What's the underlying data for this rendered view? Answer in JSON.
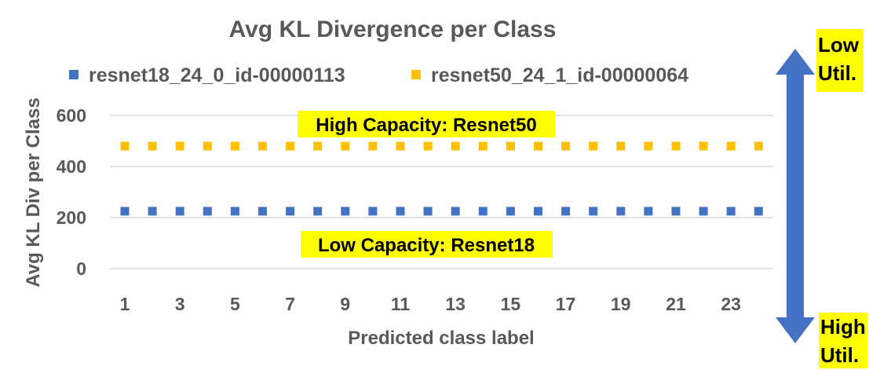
{
  "chart_data": {
    "type": "scatter",
    "title": "Avg KL Divergence per Class",
    "xlabel": "Predicted class label",
    "ylabel": "Avg KL Div per Class",
    "x": [
      1,
      2,
      3,
      4,
      5,
      6,
      7,
      8,
      9,
      10,
      11,
      12,
      13,
      14,
      15,
      16,
      17,
      18,
      19,
      20,
      21,
      22,
      23,
      24
    ],
    "x_tick_labels": [
      "1",
      "3",
      "5",
      "7",
      "9",
      "11",
      "13",
      "15",
      "17",
      "19",
      "21",
      "23"
    ],
    "y_tick_labels": [
      "0",
      "200",
      "400",
      "600"
    ],
    "ylim": [
      0,
      600
    ],
    "grid": true,
    "legend_position": "top",
    "series": [
      {
        "name": "resnet18_24_0_id-00000113",
        "color": "#4472C4",
        "values": [
          225,
          225,
          225,
          225,
          225,
          225,
          225,
          225,
          225,
          225,
          225,
          225,
          225,
          225,
          225,
          225,
          225,
          225,
          225,
          225,
          225,
          225,
          225,
          225
        ]
      },
      {
        "name": "resnet50_24_1_id-00000064",
        "color": "#FFC000",
        "values": [
          480,
          480,
          480,
          480,
          480,
          480,
          480,
          480,
          480,
          480,
          480,
          480,
          480,
          480,
          480,
          480,
          480,
          480,
          480,
          480,
          480,
          480,
          480,
          480
        ]
      }
    ],
    "annotations": {
      "high_capacity": "High Capacity: Resnet50",
      "low_capacity": "Low Capacity: Resnet18",
      "top_arrow_label": [
        "Low",
        "Util."
      ],
      "bottom_arrow_label": [
        "High",
        "Util."
      ]
    },
    "highlight_color": "#FFFF00",
    "arrow_color": "#4472C4"
  }
}
